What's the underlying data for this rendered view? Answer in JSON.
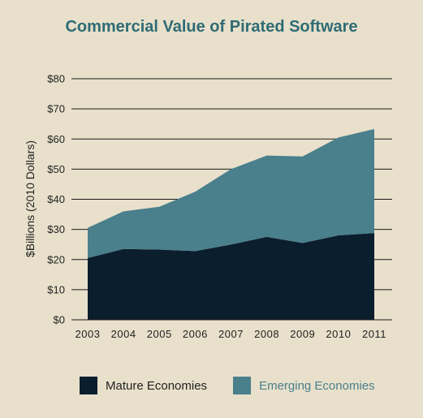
{
  "chart_data": {
    "type": "area",
    "title": "Commercial Value of Pirated Software",
    "ylabel": "$Billions (2010 Dollars)",
    "xlabel": "",
    "x": [
      "2003",
      "2004",
      "2005",
      "2006",
      "2007",
      "2008",
      "2009",
      "2010",
      "2011"
    ],
    "ylim": [
      0,
      80
    ],
    "yticks": [
      "$0",
      "$10",
      "$20",
      "$30",
      "$40",
      "$50",
      "$60",
      "$70",
      "$80"
    ],
    "stacked": true,
    "grid": true,
    "legend_position": "bottom",
    "series": [
      {
        "name": "Mature Economies",
        "color": "#0b1e2e",
        "values": [
          20.5,
          23.5,
          23.3,
          22.8,
          25.0,
          27.5,
          25.5,
          28.0,
          28.8
        ]
      },
      {
        "name": "Emerging Economies",
        "color": "#4a7f8c",
        "values": [
          10.0,
          12.5,
          14.2,
          19.7,
          25.0,
          27.0,
          28.7,
          32.5,
          34.5
        ]
      }
    ]
  }
}
